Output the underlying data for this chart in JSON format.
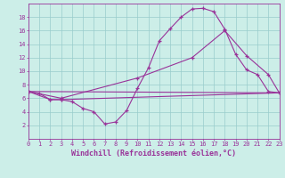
{
  "background_color": "#cceee8",
  "grid_color": "#99cccc",
  "line_color": "#993399",
  "spine_color": "#993399",
  "xlabel": "Windchill (Refroidissement éolien,°C)",
  "ylim": [
    0,
    20
  ],
  "xlim": [
    0,
    23
  ],
  "yticks": [
    2,
    4,
    6,
    8,
    10,
    12,
    14,
    16,
    18
  ],
  "xticks": [
    0,
    1,
    2,
    3,
    4,
    5,
    6,
    7,
    8,
    9,
    10,
    11,
    12,
    13,
    14,
    15,
    16,
    17,
    18,
    19,
    20,
    21,
    22,
    23
  ],
  "series1_x": [
    0,
    1,
    2,
    3,
    4,
    5,
    6,
    7,
    8,
    9,
    10,
    11,
    12,
    13,
    14,
    15,
    16,
    17,
    18,
    19,
    20,
    21,
    22,
    23
  ],
  "series1_y": [
    7,
    6.7,
    5.8,
    5.8,
    5.5,
    4.5,
    4.0,
    2.2,
    2.5,
    4.2,
    7.5,
    10.5,
    14.5,
    16.3,
    18.0,
    19.2,
    19.3,
    18.8,
    16.2,
    12.5,
    10.2,
    9.5,
    7.0,
    6.8
  ],
  "series2_x": [
    0,
    2,
    3,
    23
  ],
  "series2_y": [
    7,
    5.8,
    5.8,
    6.8
  ],
  "series3_x": [
    0,
    23
  ],
  "series3_y": [
    7,
    6.8
  ],
  "series4_x": [
    0,
    3,
    10,
    15,
    18,
    20,
    22,
    23
  ],
  "series4_y": [
    7,
    6.0,
    9.0,
    12.0,
    16.0,
    12.3,
    9.5,
    6.8
  ],
  "marker_size": 3,
  "line_width": 0.8,
  "tick_fontsize": 5.0,
  "xlabel_fontsize": 6.0
}
